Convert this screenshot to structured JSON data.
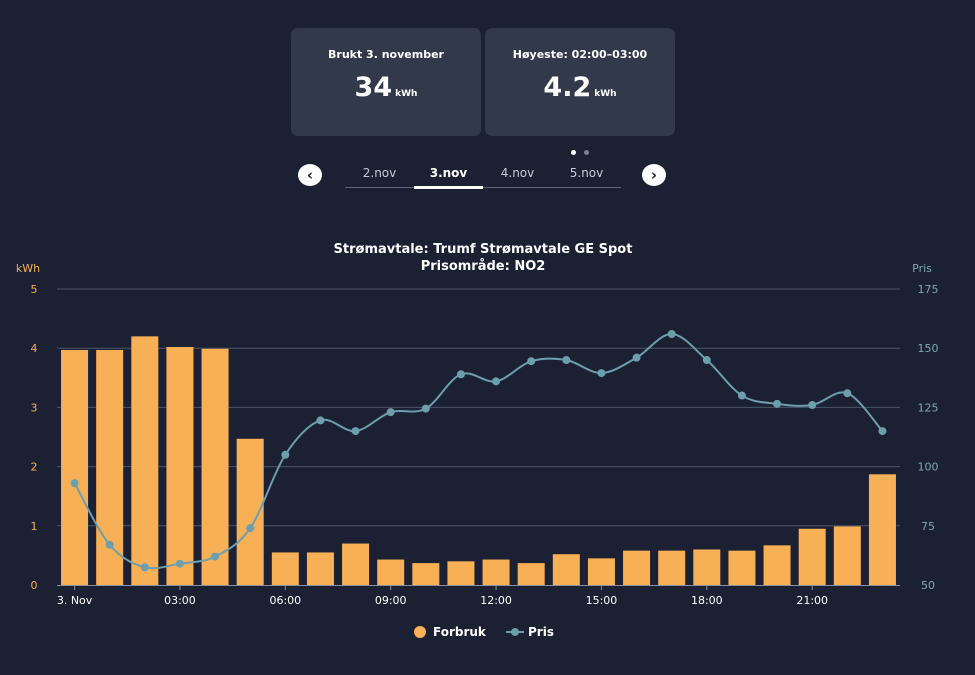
{
  "summary_cards": [
    {
      "title": "Brukt 3. november",
      "value": "34",
      "unit": "kWh"
    },
    {
      "title": "Høyeste: 02:00–03:00",
      "value": "4.2",
      "unit": "kWh"
    }
  ],
  "carousel": {
    "active_index": 0,
    "count": 2
  },
  "date_nav": {
    "prev_icon": "chevron-left-icon",
    "next_icon": "chevron-right-icon",
    "prev_glyph": "‹",
    "next_glyph": "›",
    "tabs": [
      "2.nov",
      "3.nov",
      "4.nov",
      "5.nov"
    ],
    "active_tab": "3.nov"
  },
  "colors": {
    "background": "#1b2133",
    "card": "#32394a",
    "bar": "#f7b056",
    "line": "#6d9eae",
    "left_axis": "#f7b056",
    "right_axis": "#7fa8b4",
    "grid": "#4c5468",
    "text": "#ffffff"
  },
  "chart_data": {
    "type": "bar+line",
    "title": "Strømavtale: Trumf Strømavtale GE Spot",
    "subtitle": "Prisområde: NO2",
    "left_axis_label": "kWh",
    "right_axis_label": "Pris",
    "left_ylim": [
      0,
      5
    ],
    "left_ticks": [
      0,
      1,
      2,
      3,
      4,
      5
    ],
    "right_ylim": [
      50,
      175
    ],
    "right_ticks": [
      50,
      75,
      100,
      125,
      150,
      175
    ],
    "hours": [
      0,
      1,
      2,
      3,
      4,
      5,
      6,
      7,
      8,
      9,
      10,
      11,
      12,
      13,
      14,
      15,
      16,
      17,
      18,
      19,
      20,
      21,
      22,
      23
    ],
    "x_tick_labels": [
      {
        "hour": 0,
        "label": "3. Nov"
      },
      {
        "hour": 3,
        "label": "03:00"
      },
      {
        "hour": 6,
        "label": "06:00"
      },
      {
        "hour": 9,
        "label": "09:00"
      },
      {
        "hour": 12,
        "label": "12:00"
      },
      {
        "hour": 15,
        "label": "15:00"
      },
      {
        "hour": 18,
        "label": "18:00"
      },
      {
        "hour": 21,
        "label": "21:00"
      }
    ],
    "series": [
      {
        "name": "Forbruk",
        "type": "bar",
        "axis": "left",
        "values": [
          3.97,
          3.97,
          4.2,
          4.02,
          3.99,
          2.47,
          0.55,
          0.55,
          0.7,
          0.43,
          0.37,
          0.4,
          0.43,
          0.37,
          0.52,
          0.45,
          0.58,
          0.58,
          0.6,
          0.58,
          0.67,
          0.95,
          0.99,
          1.87
        ]
      },
      {
        "name": "Pris",
        "type": "line",
        "axis": "right",
        "values": [
          93,
          67,
          57.5,
          59,
          62,
          74,
          105,
          119.5,
          115,
          123,
          124.5,
          139,
          136,
          144.5,
          145,
          139.5,
          146,
          156,
          145,
          130,
          126.5,
          126,
          131,
          115
        ]
      }
    ],
    "legend": {
      "position": "bottom-center",
      "items": [
        "Forbruk",
        "Pris"
      ]
    }
  }
}
